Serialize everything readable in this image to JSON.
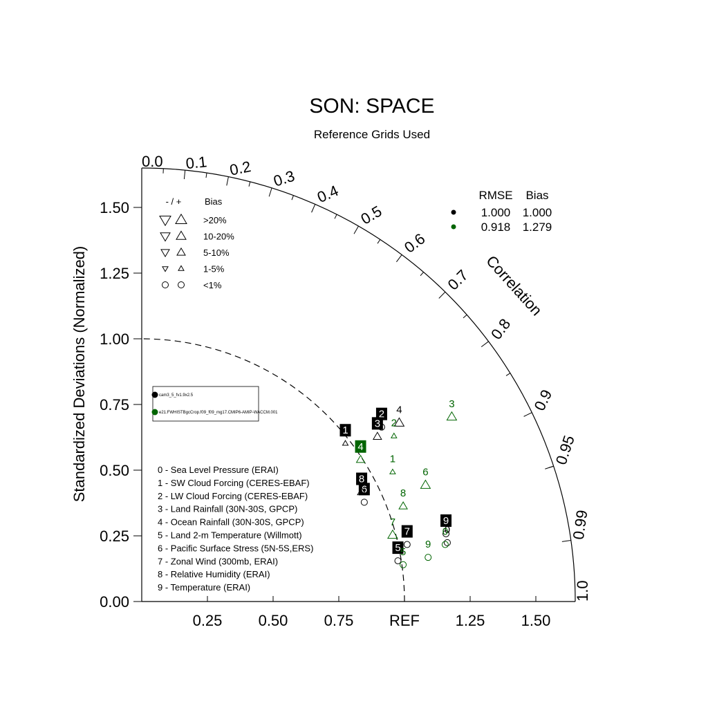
{
  "chart_data": {
    "type": "scatter",
    "title": "SON: SPACE",
    "subtitle": "Reference Grids Used",
    "ylabel": "Standardized Deviations (Normalized)",
    "corr_label": "Correlation",
    "ref_label": "REF",
    "xlim": [
      0,
      1.65
    ],
    "ylim": [
      0,
      1.65
    ],
    "x_ticks": [
      "0.25",
      "0.50",
      "0.75",
      "REF",
      "1.25",
      "1.50"
    ],
    "y_ticks": [
      "0.00",
      "0.25",
      "0.50",
      "0.75",
      "1.00",
      "1.25",
      "1.50"
    ],
    "corr_ticks": [
      "0.0",
      "0.1",
      "0.2",
      "0.3",
      "0.4",
      "0.5",
      "0.6",
      "0.7",
      "0.8",
      "0.9",
      "0.95",
      "0.99",
      "1.0"
    ],
    "bias_legend": {
      "header_sign": "- / +",
      "header_bias": "Bias",
      "rows": [
        ">20%",
        "10-20%",
        "5-10%",
        "1-5%",
        "<1%"
      ]
    },
    "stats_legend": {
      "header_rmse": "RMSE",
      "header_bias": "Bias",
      "rows": [
        {
          "rmse": "1.000",
          "bias": "1.000",
          "color": "#000000"
        },
        {
          "rmse": "0.918",
          "bias": "1.279",
          "color": "#006400"
        }
      ]
    },
    "case_legend": [
      {
        "name": "cam3_5_fv1.9x2.5",
        "color": "#000000"
      },
      {
        "name": "e21.FWHISTBgcCrop.f09_f09_mg17.CMIP6-AMIP-WACCM.001",
        "color": "#006400"
      }
    ],
    "variables": [
      "0 - Sea Level Pressure (ERAI)",
      "1 - SW Cloud Forcing (CERES-EBAF)",
      "2 - LW Cloud Forcing (CERES-EBAF)",
      "3 - Land Rainfall (30N-30S, GPCP)",
      "4 - Ocean Rainfall (30N-30S, GPCP)",
      "5 - Land 2-m Temperature (Willmott)",
      "6 - Pacific Surface Stress (5N-5S,ERS)",
      "7 - Zonal Wind (300mb, ERAI)",
      "8 - Relative Humidity (ERAI)",
      "9 - Temperature (ERAI)"
    ],
    "series": [
      {
        "name": "cam3_5_fv1.9x2.5",
        "color": "#000000",
        "points": [
          {
            "label": "0",
            "x": 1.163,
            "y": 0.224,
            "marker": "circle",
            "size": 0,
            "boxed": false
          },
          {
            "label": "1",
            "x": 0.775,
            "y": 0.602,
            "marker": "up",
            "size": 1,
            "boxed": true
          },
          {
            "label": "2",
            "x": 0.913,
            "y": 0.664,
            "marker": "circle",
            "size": 0,
            "boxed": true
          },
          {
            "label": "3",
            "x": 0.897,
            "y": 0.628,
            "marker": "up",
            "size": 2,
            "boxed": true
          },
          {
            "label": "4",
            "x": 0.98,
            "y": 0.68,
            "marker": "up",
            "size": 3,
            "boxed": false
          },
          {
            "label": "5",
            "x": 0.975,
            "y": 0.155,
            "marker": "circle",
            "size": 0,
            "boxed": true
          },
          {
            "label": "6",
            "x": 0.847,
            "y": 0.378,
            "marker": "circle",
            "size": 0,
            "boxed": true
          },
          {
            "label": "7",
            "x": 1.01,
            "y": 0.217,
            "marker": "circle",
            "size": 0,
            "boxed": true
          },
          {
            "label": "8",
            "x": 0.837,
            "y": 0.417,
            "marker": "up",
            "size": 2,
            "boxed": true
          },
          {
            "label": "9",
            "x": 1.158,
            "y": 0.258,
            "marker": "circle",
            "size": 0,
            "boxed": true
          }
        ]
      },
      {
        "name": "e21.FWHISTBgcCrop.f09_f09_mg17.CMIP6-AMIP-WACCM.001",
        "color": "#006400",
        "points": [
          {
            "label": "0",
            "x": 1.155,
            "y": 0.217,
            "marker": "circle",
            "size": 0,
            "boxed": false
          },
          {
            "label": "1",
            "x": 0.955,
            "y": 0.493,
            "marker": "up",
            "size": 1,
            "boxed": false
          },
          {
            "label": "2",
            "x": 0.96,
            "y": 0.63,
            "marker": "up",
            "size": 1,
            "boxed": false
          },
          {
            "label": "3",
            "x": 1.18,
            "y": 0.703,
            "marker": "up",
            "size": 3,
            "boxed": false
          },
          {
            "label": "4",
            "x": 0.833,
            "y": 0.54,
            "marker": "up",
            "size": 2,
            "boxed": true
          },
          {
            "label": "5",
            "x": 0.995,
            "y": 0.14,
            "marker": "circle",
            "size": 0,
            "boxed": false
          },
          {
            "label": "6",
            "x": 1.08,
            "y": 0.443,
            "marker": "up",
            "size": 3,
            "boxed": false
          },
          {
            "label": "7",
            "x": 0.955,
            "y": 0.253,
            "marker": "up",
            "size": 3,
            "boxed": false
          },
          {
            "label": "8",
            "x": 0.995,
            "y": 0.363,
            "marker": "up",
            "size": 2,
            "boxed": false
          },
          {
            "label": "9",
            "x": 1.09,
            "y": 0.168,
            "marker": "circle",
            "size": 0,
            "boxed": false
          }
        ]
      }
    ]
  }
}
